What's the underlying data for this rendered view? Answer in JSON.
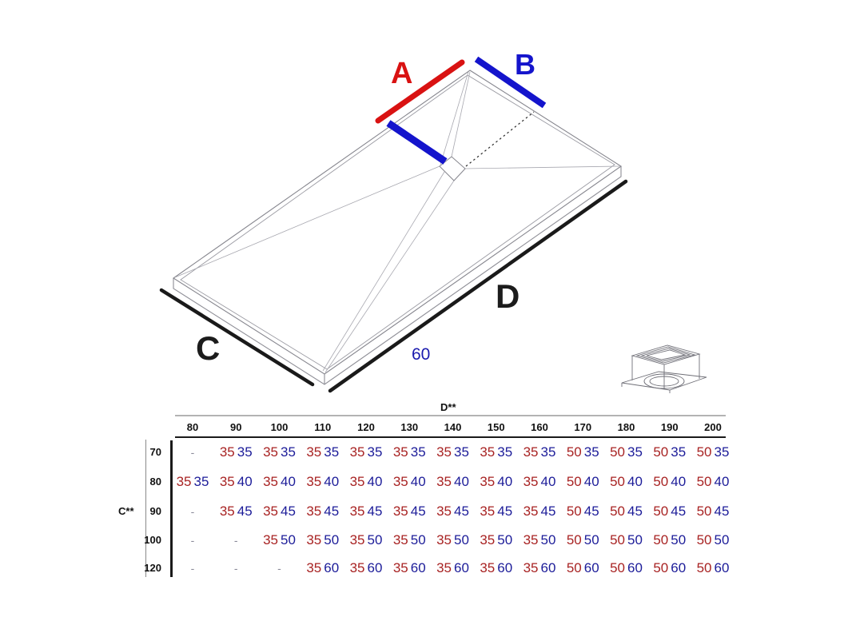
{
  "diagram": {
    "labels": {
      "a": "A",
      "b": "B",
      "c": "C",
      "d": "D",
      "edge_length": "60"
    },
    "colors": {
      "red_line": "#d91212",
      "blue_line": "#1414cc",
      "black_line": "#1a1a1a",
      "label_red": "#d91212",
      "label_blue": "#1414cc",
      "label_60": "#1a1aae"
    }
  },
  "table": {
    "col_axis_label": "D**",
    "row_axis_label": "C**",
    "columns": [
      "80",
      "90",
      "100",
      "110",
      "120",
      "130",
      "140",
      "150",
      "160",
      "170",
      "180",
      "190",
      "200"
    ],
    "rows": [
      {
        "label": "70",
        "cells": [
          "-",
          [
            "35",
            "35"
          ],
          [
            "35",
            "35"
          ],
          [
            "35",
            "35"
          ],
          [
            "35",
            "35"
          ],
          [
            "35",
            "35"
          ],
          [
            "35",
            "35"
          ],
          [
            "35",
            "35"
          ],
          [
            "35",
            "35"
          ],
          [
            "50",
            "35"
          ],
          [
            "50",
            "35"
          ],
          [
            "50",
            "35"
          ],
          [
            "50",
            "35"
          ]
        ]
      },
      {
        "label": "80",
        "cells": [
          [
            "35",
            "35"
          ],
          [
            "35",
            "40"
          ],
          [
            "35",
            "40"
          ],
          [
            "35",
            "40"
          ],
          [
            "35",
            "40"
          ],
          [
            "35",
            "40"
          ],
          [
            "35",
            "40"
          ],
          [
            "35",
            "40"
          ],
          [
            "35",
            "40"
          ],
          [
            "50",
            "40"
          ],
          [
            "50",
            "40"
          ],
          [
            "50",
            "40"
          ],
          [
            "50",
            "40"
          ]
        ]
      },
      {
        "label": "90",
        "cells": [
          "-",
          [
            "35",
            "45"
          ],
          [
            "35",
            "45"
          ],
          [
            "35",
            "45"
          ],
          [
            "35",
            "45"
          ],
          [
            "35",
            "45"
          ],
          [
            "35",
            "45"
          ],
          [
            "35",
            "45"
          ],
          [
            "35",
            "45"
          ],
          [
            "50",
            "45"
          ],
          [
            "50",
            "45"
          ],
          [
            "50",
            "45"
          ],
          [
            "50",
            "45"
          ]
        ]
      },
      {
        "label": "100",
        "cells": [
          "-",
          "-",
          [
            "35",
            "50"
          ],
          [
            "35",
            "50"
          ],
          [
            "35",
            "50"
          ],
          [
            "35",
            "50"
          ],
          [
            "35",
            "50"
          ],
          [
            "35",
            "50"
          ],
          [
            "35",
            "50"
          ],
          [
            "50",
            "50"
          ],
          [
            "50",
            "50"
          ],
          [
            "50",
            "50"
          ],
          [
            "50",
            "50"
          ]
        ]
      },
      {
        "label": "120",
        "cells": [
          "-",
          "-",
          "-",
          [
            "35",
            "60"
          ],
          [
            "35",
            "60"
          ],
          [
            "35",
            "60"
          ],
          [
            "35",
            "60"
          ],
          [
            "35",
            "60"
          ],
          [
            "35",
            "60"
          ],
          [
            "50",
            "60"
          ],
          [
            "50",
            "60"
          ],
          [
            "50",
            "60"
          ],
          [
            "50",
            "60"
          ]
        ]
      }
    ],
    "colors": {
      "first_value": "#a82323",
      "second_value": "#1c1c99",
      "dash": "#8a8a99"
    }
  }
}
